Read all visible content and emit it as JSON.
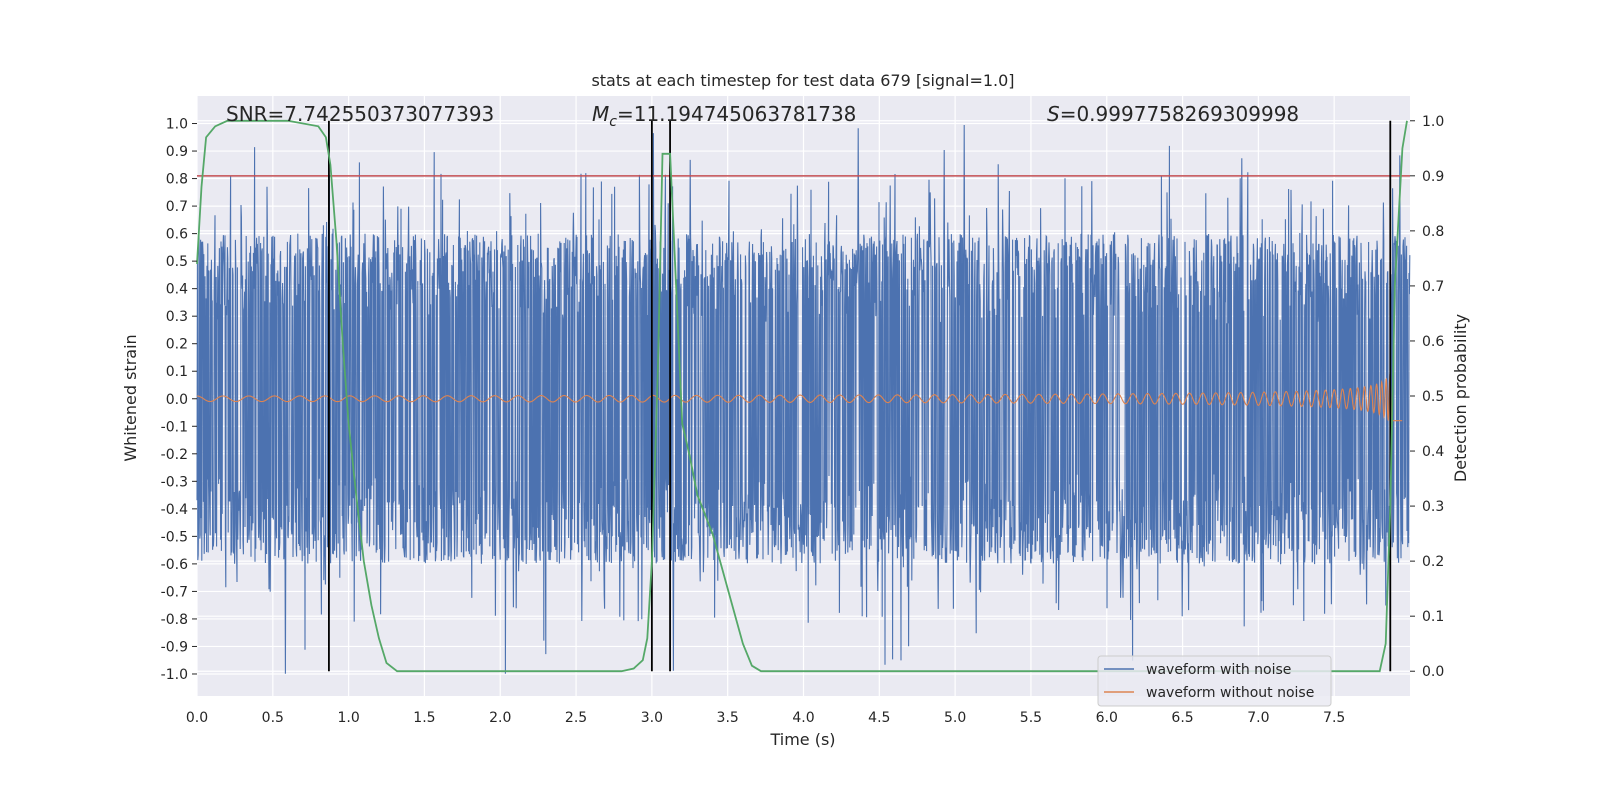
{
  "chart_data": {
    "type": "line",
    "title": "stats at each timestep for test data 679 [signal=1.0]",
    "xlabel": "Time (s)",
    "ylabel": "Whitened strain",
    "ylabel_right": "Detection probability",
    "xlim": [
      0.0,
      8.0
    ],
    "ylim_left": [
      -1.08,
      1.1
    ],
    "ylim_right": [
      -0.045,
      1.045
    ],
    "x_ticks": [
      "0.0",
      "0.5",
      "1.0",
      "1.5",
      "2.0",
      "2.5",
      "3.0",
      "3.5",
      "4.0",
      "4.5",
      "5.0",
      "5.5",
      "6.0",
      "6.5",
      "7.0",
      "7.5"
    ],
    "y_ticks_left": [
      "1.0",
      "0.9",
      "0.8",
      "0.7",
      "0.6",
      "0.5",
      "0.4",
      "0.3",
      "0.2",
      "0.1",
      "0.0",
      "-0.1",
      "-0.2",
      "-0.3",
      "-0.4",
      "-0.5",
      "-0.6",
      "-0.7",
      "-0.8",
      "-0.9",
      "-1.0"
    ],
    "y_ticks_right": [
      "1.0",
      "0.9",
      "0.8",
      "0.7",
      "0.6",
      "0.5",
      "0.4",
      "0.3",
      "0.2",
      "0.1",
      "0.0"
    ],
    "grid": true,
    "legend_position": "lower-right",
    "annotations": {
      "snr": "SNR=7.742550373077393",
      "mc_symbol": "M",
      "mc_sub": "c",
      "mc_value": "=11.194745063781738",
      "s_symbol": "S",
      "s_value": "=0.9997758269309998"
    },
    "threshold": {
      "axis": "right",
      "value": 0.9,
      "color": "#c44e52"
    },
    "vertical_lines": [
      0.87,
      3.0,
      3.12,
      7.87
    ],
    "series": [
      {
        "name": "waveform with noise",
        "axis": "left",
        "color": "#4c72b0",
        "kind": "noise-band",
        "typical_amplitude": 0.6,
        "peak_amplitude": 1.0,
        "x_range": [
          0.0,
          8.0
        ]
      },
      {
        "name": "waveform without noise",
        "axis": "left",
        "color": "#dd8452",
        "kind": "chirp",
        "x_range": [
          0.0,
          7.95
        ],
        "amplitude_start": 0.01,
        "amplitude_end": 0.4,
        "merger_time": 7.9
      },
      {
        "name": "",
        "axis": "right",
        "color": "#55a868",
        "kind": "probability",
        "x": [
          0.0,
          0.03,
          0.06,
          0.12,
          0.2,
          0.4,
          0.6,
          0.8,
          0.85,
          0.88,
          0.92,
          0.96,
          1.0,
          1.05,
          1.1,
          1.15,
          1.2,
          1.25,
          1.32,
          1.5,
          2.0,
          2.5,
          2.8,
          2.88,
          2.94,
          2.97,
          3.0,
          3.04,
          3.07,
          3.12,
          3.16,
          3.2,
          3.25,
          3.3,
          3.4,
          3.5,
          3.6,
          3.66,
          3.72,
          3.8,
          4.0,
          5.0,
          6.0,
          7.0,
          7.5,
          7.8,
          7.84,
          7.87,
          7.9,
          7.95,
          7.98
        ],
        "y": [
          0.74,
          0.88,
          0.97,
          0.99,
          1.0,
          1.0,
          1.0,
          0.99,
          0.97,
          0.92,
          0.78,
          0.6,
          0.45,
          0.32,
          0.2,
          0.12,
          0.06,
          0.015,
          0.0,
          0.0,
          0.0,
          0.0,
          0.0,
          0.005,
          0.02,
          0.06,
          0.2,
          0.55,
          0.94,
          0.94,
          0.7,
          0.45,
          0.39,
          0.32,
          0.25,
          0.15,
          0.05,
          0.01,
          0.0,
          0.0,
          0.0,
          0.0,
          0.0,
          0.0,
          0.0,
          0.0,
          0.05,
          0.3,
          0.7,
          0.95,
          1.0
        ]
      }
    ]
  }
}
